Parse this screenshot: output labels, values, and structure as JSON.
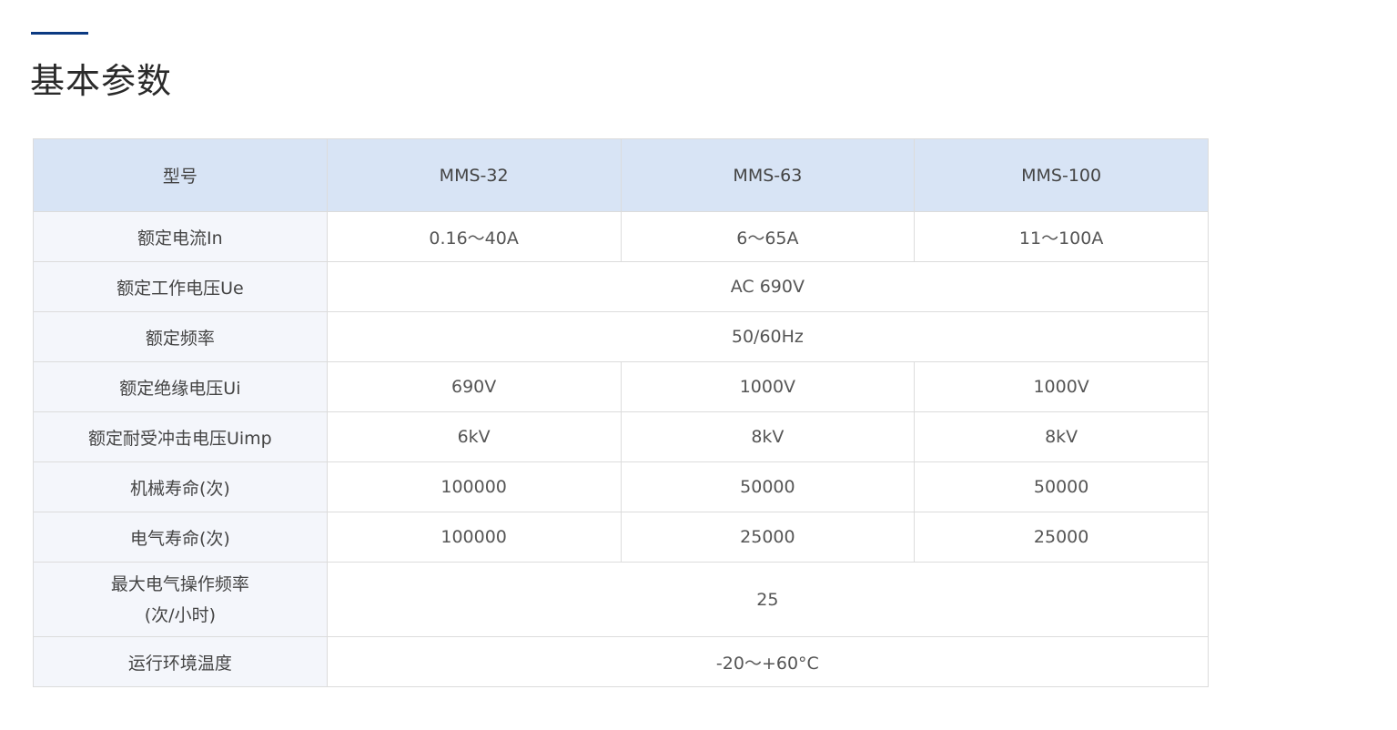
{
  "title": "基本参数",
  "accent_color": "#0b3a82",
  "header_bg": "#d8e4f5",
  "table": {
    "headers": [
      "型号",
      "MMS-32",
      "MMS-63",
      "MMS-100"
    ],
    "rows": [
      {
        "label": "额定电流In",
        "values": [
          "0.16～40A",
          "6～65A",
          "11～100A"
        ]
      },
      {
        "label": "额定工作电压Ue",
        "values": [
          "AC 690V"
        ]
      },
      {
        "label": "额定频率",
        "values": [
          "50/60Hz"
        ]
      },
      {
        "label": "额定绝缘电压Ui",
        "values": [
          "690V",
          "1000V",
          "1000V"
        ]
      },
      {
        "label": "额定耐受冲击电压Uimp",
        "values": [
          "6kV",
          "8kV",
          "8kV"
        ]
      },
      {
        "label": "机械寿命(次)",
        "values": [
          "100000",
          "50000",
          "50000"
        ]
      },
      {
        "label": "电气寿命(次)",
        "values": [
          "100000",
          "25000",
          "25000"
        ]
      },
      {
        "label": "最大电气操作频率\n(次/小时)",
        "label_lines": [
          "最大电气操作频率",
          "(次/小时)"
        ],
        "values": [
          "25"
        ]
      },
      {
        "label": "运行环境温度",
        "values": [
          "-20～+60°C"
        ]
      }
    ]
  }
}
